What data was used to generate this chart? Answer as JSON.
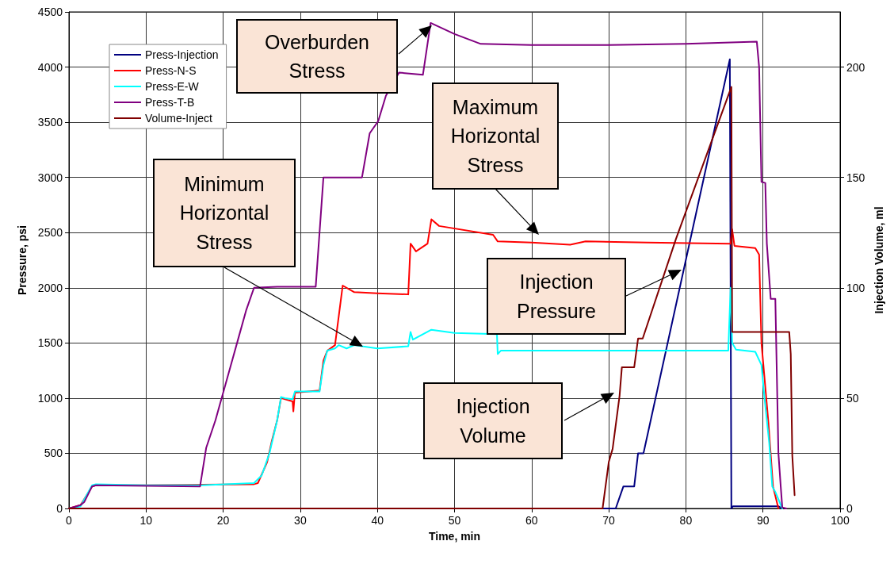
{
  "chart_data": {
    "type": "line",
    "xlabel": "Time, min",
    "ylabel": "Pressure, psi",
    "y2label": "Injection Volume, ml",
    "xlim": [
      0,
      100
    ],
    "xticks": [
      0,
      10,
      20,
      30,
      40,
      50,
      60,
      70,
      80,
      90,
      100
    ],
    "ylim": [
      0,
      4500
    ],
    "yticks": [
      0,
      500,
      1000,
      1500,
      2000,
      2500,
      3000,
      3500,
      4000,
      4500
    ],
    "y2lim": [
      0,
      225
    ],
    "y2ticks": [
      0,
      50,
      100,
      150,
      200
    ],
    "grid": true,
    "legend": "top left",
    "marker": "none",
    "line_style": "solid",
    "series": [
      {
        "name": "Press-Injection",
        "color": "#000080",
        "x": [
          0,
          70.9,
          71.9,
          73.3,
          73.8,
          74.5,
          85.7,
          85.9,
          86.1,
          92,
          92.5
        ],
        "values": [
          0,
          0,
          200,
          200,
          500,
          500,
          4070,
          0,
          20,
          20,
          0
        ]
      },
      {
        "name": "Press-N-S",
        "color": "#ff0000",
        "x": [
          0,
          1.5,
          3,
          3.5,
          10,
          24,
          24.5,
          25.7,
          26.3,
          27,
          27.5,
          29,
          29.1,
          29.3,
          32.5,
          33,
          33.5,
          34.5,
          35,
          35.5,
          37,
          40,
          44,
          44.3,
          45,
          46.5,
          47,
          48,
          55,
          55.6,
          60,
          65,
          67,
          75,
          85.8,
          86,
          86.3,
          89,
          89.5,
          89.8,
          90.7,
          91.3,
          92
        ],
        "values": [
          0,
          30,
          200,
          210,
          210,
          220,
          230,
          420,
          610,
          800,
          1000,
          970,
          880,
          1050,
          1070,
          1340,
          1430,
          1480,
          1750,
          2020,
          1960,
          1950,
          1940,
          2400,
          2330,
          2400,
          2620,
          2560,
          2480,
          2420,
          2410,
          2390,
          2420,
          2410,
          2400,
          2530,
          2380,
          2360,
          2300,
          1500,
          780,
          200,
          0
        ]
      },
      {
        "name": "Press-E-W",
        "color": "#00ffff",
        "x": [
          0,
          1.5,
          3,
          3.5,
          10,
          17,
          24,
          25,
          26,
          27,
          27.5,
          28,
          29,
          29.3,
          32.5,
          33,
          33.5,
          34.5,
          35,
          36,
          37,
          40,
          44,
          44.3,
          44.6,
          47,
          50,
          55.5,
          55.6,
          56,
          70,
          85.5,
          85.8,
          86,
          86.5,
          89,
          89.8,
          90.2,
          90.8,
          91.2,
          91.6,
          92.5
        ],
        "values": [
          0,
          20,
          210,
          220,
          210,
          210,
          230,
          300,
          500,
          800,
          1010,
          1000,
          990,
          1060,
          1060,
          1300,
          1430,
          1450,
          1480,
          1450,
          1480,
          1450,
          1470,
          1600,
          1530,
          1620,
          1590,
          1580,
          1400,
          1430,
          1430,
          1430,
          2000,
          1500,
          1440,
          1420,
          1300,
          1000,
          600,
          200,
          150,
          0
        ]
      },
      {
        "name": "Press-T-B",
        "color": "#800080",
        "x": [
          0,
          1.5,
          2,
          3,
          3.5,
          17,
          17.8,
          19,
          20,
          21,
          22,
          23,
          24,
          27,
          32,
          33,
          38,
          39,
          40.1,
          41.1,
          42.8,
          45.9,
          46.9,
          50,
          53.4,
          60,
          70,
          80,
          89.2,
          89.5,
          89.8,
          90.3,
          90.5,
          91,
          91.6,
          92,
          92.3,
          92.5,
          93
        ],
        "values": [
          0,
          30,
          60,
          200,
          210,
          200,
          550,
          800,
          1050,
          1300,
          1550,
          1800,
          2000,
          2010,
          2010,
          3000,
          3000,
          3400,
          3510,
          3740,
          3950,
          3930,
          4400,
          4300,
          4210,
          4200,
          4200,
          4210,
          4230,
          4000,
          2960,
          2950,
          2400,
          1900,
          1900,
          500,
          200,
          10,
          0
        ]
      },
      {
        "name": "Volume-Inject",
        "color": "#800000",
        "axis": "y2",
        "x": [
          0,
          69.2,
          70,
          70.5,
          71.4,
          71.7,
          73.3,
          73.8,
          74.4,
          78.7,
          85.9,
          86,
          93.4,
          93.6,
          93.8,
          94.1
        ],
        "values": [
          0,
          0,
          21,
          27,
          51,
          64,
          64,
          77,
          77,
          122,
          191,
          80,
          80,
          70,
          24,
          6
        ]
      }
    ],
    "annotations": [
      "Overburden Stress",
      "Minimum Horizontal Stress",
      "Maximum Horizontal Stress",
      "Injection Pressure",
      "Injection Volume"
    ]
  }
}
